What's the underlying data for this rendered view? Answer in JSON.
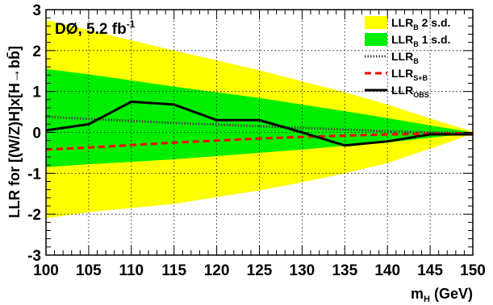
{
  "chart_data": {
    "type": "area",
    "annotation": {
      "main": "DØ, 5.2 fb",
      "sup": "-1"
    },
    "xlabel": {
      "main": "m",
      "sub": "H",
      "rest": " (GeV)"
    },
    "ylabel": "LLR for [(W/Z)H]x[H→bb̄]",
    "xlim": [
      100,
      150
    ],
    "ylim": [
      -3,
      3
    ],
    "xticks": [
      100,
      105,
      110,
      115,
      120,
      125,
      130,
      135,
      140,
      145,
      150
    ],
    "yticks": [
      -3,
      -2,
      -1,
      0,
      1,
      2,
      3
    ],
    "grid": true,
    "legend_position": "top-right",
    "colors": {
      "band2": "#ffff00",
      "band1": "#00ee00",
      "llr_b": "#444444",
      "llr_sb": "#ff0000",
      "llr_obs": "#000000"
    },
    "legend": [
      {
        "key": "band2",
        "main": "LLR",
        "sub": "B",
        "rest": " 2 s.d."
      },
      {
        "key": "band1",
        "main": "LLR",
        "sub": "B",
        "rest": " 1 s.d."
      },
      {
        "key": "llr_b",
        "main": "LLR",
        "sub": "B",
        "rest": ""
      },
      {
        "key": "llr_sb",
        "main": "LLR",
        "sub": "S+B",
        "rest": ""
      },
      {
        "key": "llr_obs",
        "main": "LLR",
        "sub": "OBS",
        "rest": ""
      }
    ],
    "x": [
      100,
      105,
      110,
      115,
      120,
      125,
      130,
      135,
      140,
      145,
      150
    ],
    "llr_b": [
      0.38,
      0.33,
      0.28,
      0.23,
      0.19,
      0.15,
      0.11,
      0.07,
      0.03,
      0.0,
      -0.02
    ],
    "llr_sb": [
      -0.42,
      -0.37,
      -0.31,
      -0.25,
      -0.2,
      -0.15,
      -0.11,
      -0.08,
      -0.05,
      -0.03,
      -0.02
    ],
    "llr_obs": [
      0.05,
      0.2,
      0.75,
      0.68,
      0.3,
      0.3,
      0.0,
      -0.32,
      -0.22,
      -0.05,
      -0.05
    ],
    "band1_upper": [
      1.55,
      1.42,
      1.27,
      1.12,
      0.98,
      0.84,
      0.68,
      0.52,
      0.35,
      0.17,
      0.0
    ],
    "band1_lower": [
      -0.85,
      -0.78,
      -0.72,
      -0.66,
      -0.58,
      -0.5,
      -0.42,
      -0.33,
      -0.25,
      -0.13,
      -0.02
    ],
    "band2_upper": [
      2.75,
      2.5,
      2.25,
      2.0,
      1.76,
      1.52,
      1.25,
      0.98,
      0.68,
      0.34,
      0.02
    ],
    "band2_lower": [
      -2.1,
      -1.95,
      -1.85,
      -1.75,
      -1.58,
      -1.42,
      -1.22,
      -1.0,
      -0.75,
      -0.4,
      -0.03
    ]
  }
}
